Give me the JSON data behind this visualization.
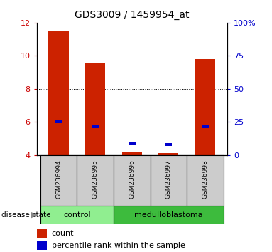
{
  "title": "GDS3009 / 1459954_at",
  "samples": [
    "GSM236994",
    "GSM236995",
    "GSM236996",
    "GSM236997",
    "GSM236998"
  ],
  "count_values": [
    11.5,
    9.6,
    4.15,
    4.1,
    9.8
  ],
  "percentile_values": [
    6.0,
    5.72,
    4.72,
    4.62,
    5.72
  ],
  "y_min": 4,
  "y_max": 12,
  "y_ticks": [
    4,
    6,
    8,
    10,
    12
  ],
  "y_right_ticks": [
    0,
    25,
    50,
    75,
    100
  ],
  "y_right_labels": [
    "0",
    "25",
    "50",
    "75",
    "100%"
  ],
  "groups": [
    {
      "label": "control",
      "indices": [
        0,
        1
      ],
      "color": "#90ee90"
    },
    {
      "label": "medulloblastoma",
      "indices": [
        2,
        3,
        4
      ],
      "color": "#3dbb3d"
    }
  ],
  "bar_color": "#cc2200",
  "percentile_color": "#0000cc",
  "grid_color": "#000000",
  "bg_color": "#cccccc",
  "title_fontsize": 10,
  "axis_label_color_left": "#cc0000",
  "axis_label_color_right": "#0000cc",
  "disease_state_label": "disease state",
  "legend_count_label": "count",
  "legend_percentile_label": "percentile rank within the sample"
}
